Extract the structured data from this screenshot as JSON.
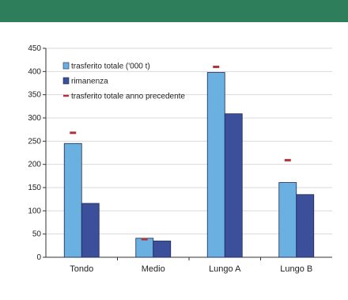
{
  "header": {
    "color": "#2e7d5b"
  },
  "chart_data": {
    "type": "bar",
    "categories": [
      "Tondo",
      "Medio",
      "Lungo A",
      "Lungo B"
    ],
    "series": [
      {
        "name": "trasferito totale ('000 t)",
        "values": [
          245,
          41,
          398,
          161
        ],
        "color": "#6ab0e0"
      },
      {
        "name": "rimanenza",
        "values": [
          116,
          35,
          309,
          135
        ],
        "color": "#3b4f9a"
      },
      {
        "name": "trasferito totale anno precedente",
        "values": [
          268,
          39,
          410,
          209
        ],
        "color": "#b0343a",
        "marker": "dash"
      }
    ],
    "yticks": [
      "0",
      "50",
      "100",
      "150",
      "200",
      "250",
      "300",
      "350",
      "400",
      "450"
    ],
    "ylim": [
      0,
      450
    ],
    "grid": true,
    "legend_position": "top-left",
    "title": "",
    "xlabel": "",
    "ylabel": ""
  }
}
